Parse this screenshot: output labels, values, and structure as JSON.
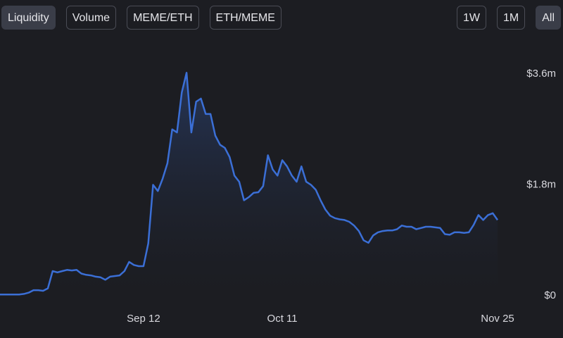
{
  "tabs": [
    "Liquidity",
    "Volume",
    "MEME/ETH",
    "ETH/MEME"
  ],
  "ranges": [
    "1W",
    "1M",
    "All"
  ],
  "chart_data": {
    "type": "area",
    "color": "#3b6fd6",
    "categories": [
      null,
      null,
      null,
      null,
      null,
      null,
      null,
      null,
      null,
      null,
      null,
      null,
      null,
      null,
      null,
      null,
      null,
      null,
      null,
      null,
      null,
      null,
      null,
      null,
      null,
      null,
      null,
      null,
      null,
      null,
      "Sep 12",
      null,
      null,
      null,
      null,
      null,
      null,
      null,
      null,
      null,
      null,
      null,
      null,
      null,
      null,
      null,
      null,
      null,
      null,
      null,
      null,
      null,
      null,
      null,
      null,
      null,
      null,
      null,
      null,
      "Oct 11",
      null,
      null,
      null,
      null,
      null,
      null,
      null,
      null,
      null,
      null,
      null,
      null,
      null,
      null,
      null,
      null,
      null,
      null,
      null,
      null,
      null,
      null,
      null,
      null,
      null,
      null,
      null,
      null,
      null,
      null,
      null,
      null,
      null,
      null,
      null,
      null,
      null,
      null,
      null,
      null,
      null,
      null,
      null,
      null,
      "Nov 25"
    ],
    "values": [
      0.02,
      0.02,
      0.02,
      0.02,
      0.02,
      0.03,
      0.05,
      0.09,
      0.09,
      0.08,
      0.12,
      0.4,
      0.38,
      0.4,
      0.42,
      0.41,
      0.42,
      0.36,
      0.34,
      0.33,
      0.31,
      0.3,
      0.26,
      0.31,
      0.32,
      0.33,
      0.4,
      0.55,
      0.5,
      0.48,
      0.48,
      0.85,
      1.8,
      1.7,
      1.9,
      2.15,
      2.7,
      2.65,
      3.3,
      3.62,
      2.65,
      3.15,
      3.2,
      2.95,
      2.95,
      2.6,
      2.45,
      2.4,
      2.25,
      1.95,
      1.85,
      1.55,
      1.6,
      1.67,
      1.68,
      1.78,
      2.28,
      2.05,
      1.95,
      2.2,
      2.1,
      1.95,
      1.85,
      2.1,
      1.85,
      1.8,
      1.72,
      1.55,
      1.4,
      1.3,
      1.26,
      1.24,
      1.23,
      1.2,
      1.14,
      1.05,
      0.9,
      0.86,
      0.98,
      1.03,
      1.05,
      1.06,
      1.06,
      1.08,
      1.14,
      1.12,
      1.12,
      1.08,
      1.1,
      1.12,
      1.12,
      1.11,
      1.1,
      1.0,
      0.99,
      1.03,
      1.03,
      1.02,
      1.03,
      1.15,
      1.31,
      1.23,
      1.31,
      1.34,
      1.23
    ],
    "ylim": [
      0,
      4.0
    ],
    "yticks": [
      {
        "value": 0,
        "label": "$0"
      },
      {
        "value": 1.8,
        "label": "$1.8m"
      },
      {
        "value": 3.6,
        "label": "$3.6m"
      }
    ]
  }
}
